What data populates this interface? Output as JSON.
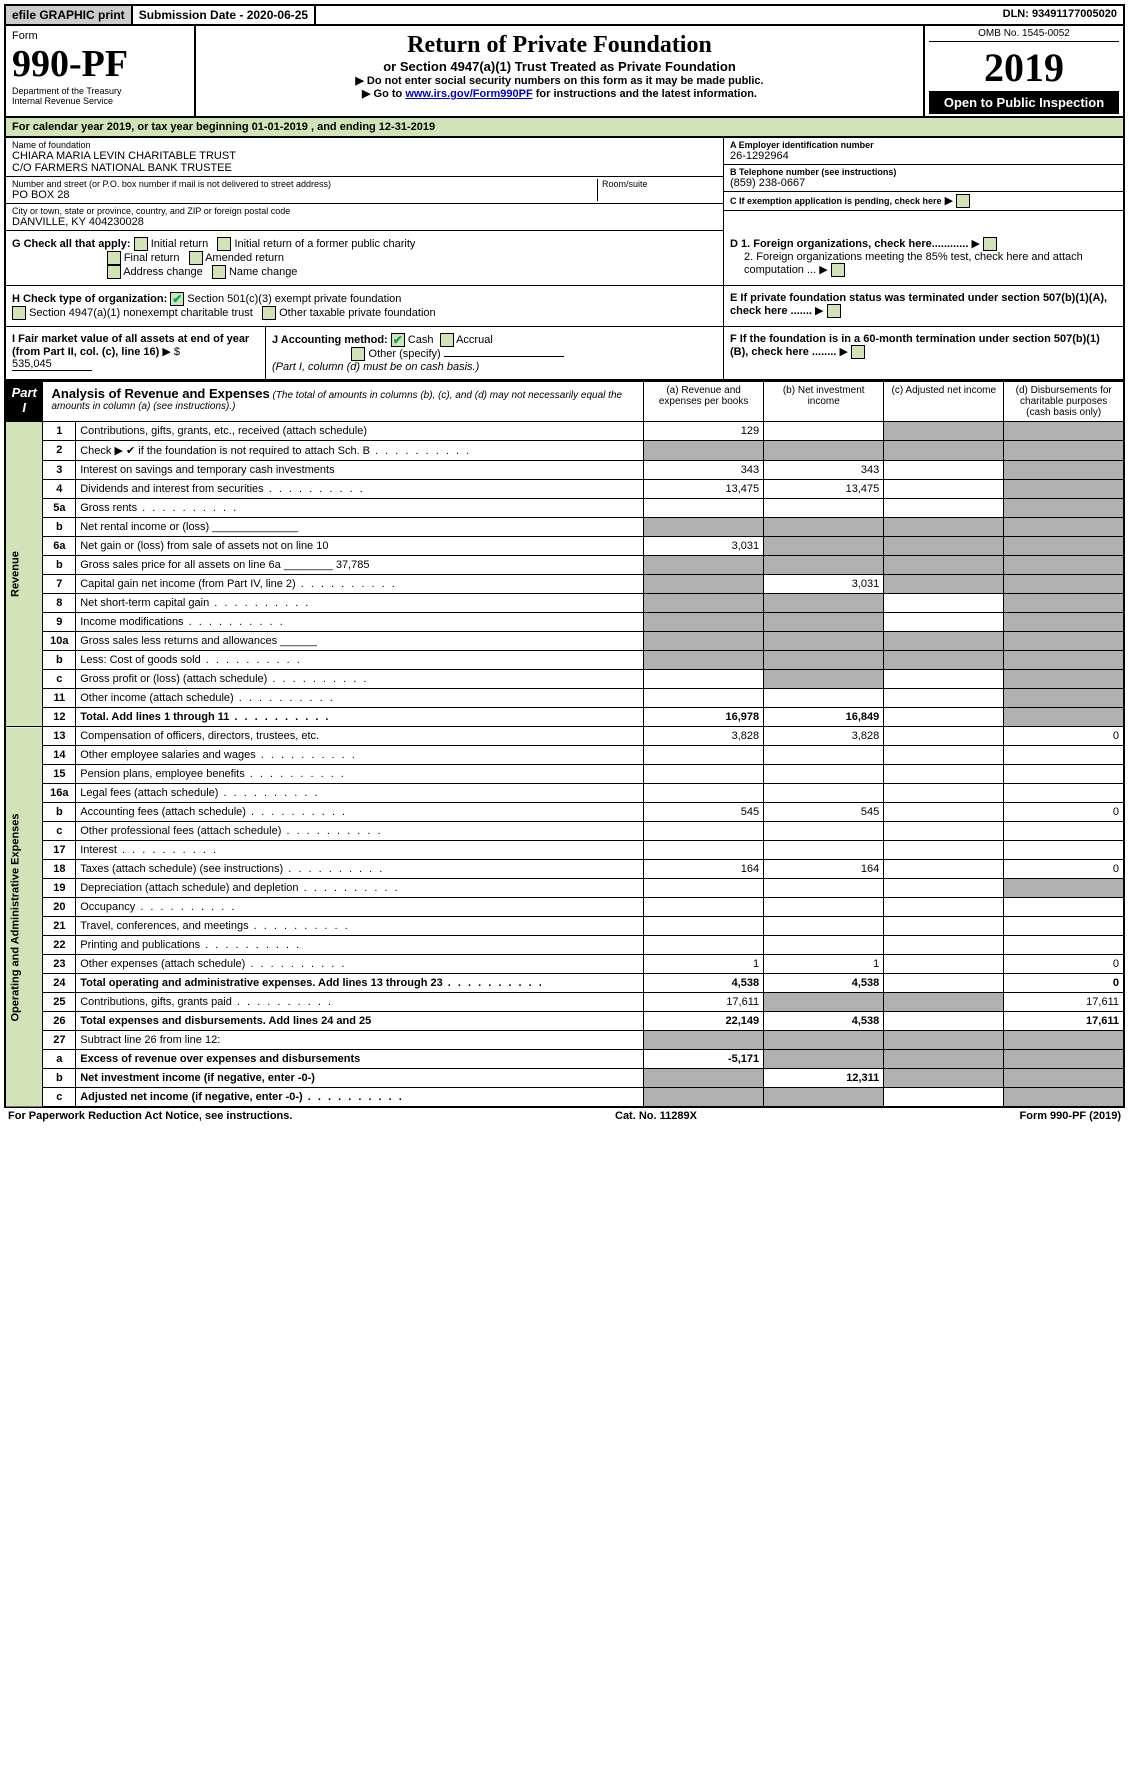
{
  "topbar": {
    "efile": "efile GRAPHIC print",
    "submission_label": "Submission Date - 2020-06-25",
    "dln": "DLN: 93491177005020"
  },
  "header": {
    "form_label": "Form",
    "form_number": "990-PF",
    "dept1": "Department of the Treasury",
    "dept2": "Internal Revenue Service",
    "title": "Return of Private Foundation",
    "subtitle": "or Section 4947(a)(1) Trust Treated as Private Foundation",
    "instr1": "▶ Do not enter social security numbers on this form as it may be made public.",
    "instr2_pre": "▶ Go to ",
    "instr2_link": "www.irs.gov/Form990PF",
    "instr2_post": " for instructions and the latest information.",
    "omb": "OMB No. 1545-0052",
    "year": "2019",
    "open": "Open to Public Inspection"
  },
  "calendar_line": "For calendar year 2019, or tax year beginning 01-01-2019              , and ending 12-31-2019",
  "identity": {
    "name_lbl": "Name of foundation",
    "name1": "CHIARA MARIA LEVIN CHARITABLE TRUST",
    "name2": "C/O FARMERS NATIONAL BANK TRUSTEE",
    "addr_lbl": "Number and street (or P.O. box number if mail is not delivered to street address)",
    "addr": "PO BOX 28",
    "room_lbl": "Room/suite",
    "city_lbl": "City or town, state or province, country, and ZIP or foreign postal code",
    "city": "DANVILLE, KY  404230028",
    "ein_lbl": "A Employer identification number",
    "ein": "26-1292964",
    "tel_lbl": "B Telephone number (see instructions)",
    "tel": "(859) 238-0667",
    "c_lbl": "C If exemption application is pending, check here"
  },
  "g": {
    "label": "G Check all that apply:",
    "opts": [
      "Initial return",
      "Initial return of a former public charity",
      "Final return",
      "Amended return",
      "Address change",
      "Name change"
    ]
  },
  "h": {
    "label": "H Check type of organization:",
    "opt1": "Section 501(c)(3) exempt private foundation",
    "opt2": "Section 4947(a)(1) nonexempt charitable trust",
    "opt3": "Other taxable private foundation"
  },
  "i": {
    "label": "I Fair market value of all assets at end of year (from Part II, col. (c), line 16)",
    "arrow": "▶ $",
    "value": "535,045"
  },
  "j": {
    "label": "J Accounting method:",
    "cash": "Cash",
    "accrual": "Accrual",
    "other": "Other (specify)",
    "note": "(Part I, column (d) must be on cash basis.)"
  },
  "d": {
    "d1": "D 1. Foreign organizations, check here............",
    "d2": "2. Foreign organizations meeting the 85% test, check here and attach computation ...",
    "e": "E  If private foundation status was terminated under section 507(b)(1)(A), check here .......",
    "f": "F  If the foundation is in a 60-month termination under section 507(b)(1)(B), check here ........"
  },
  "part1": {
    "tab": "Part I",
    "title": "Analysis of Revenue and Expenses",
    "note": "(The total of amounts in columns (b), (c), and (d) may not necessarily equal the amounts in column (a) (see instructions).)",
    "col_a": "(a)   Revenue and expenses per books",
    "col_b": "(b)  Net investment income",
    "col_c": "(c)  Adjusted net income",
    "col_d": "(d)  Disbursements for charitable purposes (cash basis only)"
  },
  "revenue_label": "Revenue",
  "expenses_label": "Operating and Administrative Expenses",
  "rows": [
    {
      "n": "1",
      "d": "Contributions, gifts, grants, etc., received (attach schedule)",
      "a": "129",
      "b": "",
      "c": "s",
      "dd": "s"
    },
    {
      "n": "2",
      "d": "Check ▶ ✔ if the foundation is not required to attach Sch. B",
      "a": "s",
      "b": "s",
      "c": "s",
      "dd": "s",
      "dot": 1
    },
    {
      "n": "3",
      "d": "Interest on savings and temporary cash investments",
      "a": "343",
      "b": "343",
      "c": "",
      "dd": "s"
    },
    {
      "n": "4",
      "d": "Dividends and interest from securities",
      "a": "13,475",
      "b": "13,475",
      "c": "",
      "dd": "s",
      "dot": 1
    },
    {
      "n": "5a",
      "d": "Gross rents",
      "a": "",
      "b": "",
      "c": "",
      "dd": "s",
      "dot": 1
    },
    {
      "n": "b",
      "d": "Net rental income or (loss)  ______________",
      "a": "s",
      "b": "s",
      "c": "s",
      "dd": "s"
    },
    {
      "n": "6a",
      "d": "Net gain or (loss) from sale of assets not on line 10",
      "a": "3,031",
      "b": "s",
      "c": "s",
      "dd": "s"
    },
    {
      "n": "b",
      "d": "Gross sales price for all assets on line 6a ________ 37,785",
      "a": "s",
      "b": "s",
      "c": "s",
      "dd": "s"
    },
    {
      "n": "7",
      "d": "Capital gain net income (from Part IV, line 2)",
      "a": "s",
      "b": "3,031",
      "c": "s",
      "dd": "s",
      "dot": 1
    },
    {
      "n": "8",
      "d": "Net short-term capital gain",
      "a": "s",
      "b": "s",
      "c": "",
      "dd": "s",
      "dot": 1
    },
    {
      "n": "9",
      "d": "Income modifications",
      "a": "s",
      "b": "s",
      "c": "",
      "dd": "s",
      "dot": 1
    },
    {
      "n": "10a",
      "d": "Gross sales less returns and allowances  ______",
      "a": "s",
      "b": "s",
      "c": "s",
      "dd": "s"
    },
    {
      "n": "b",
      "d": "Less: Cost of goods sold",
      "a": "s",
      "b": "s",
      "c": "s",
      "dd": "s",
      "dot": 1
    },
    {
      "n": "c",
      "d": "Gross profit or (loss) (attach schedule)",
      "a": "",
      "b": "s",
      "c": "",
      "dd": "s",
      "dot": 1
    },
    {
      "n": "11",
      "d": "Other income (attach schedule)",
      "a": "",
      "b": "",
      "c": "",
      "dd": "s",
      "dot": 1
    },
    {
      "n": "12",
      "d": "Total. Add lines 1 through 11",
      "a": "16,978",
      "b": "16,849",
      "c": "",
      "dd": "s",
      "bold": 1,
      "dot": 1
    }
  ],
  "exp_rows": [
    {
      "n": "13",
      "d": "Compensation of officers, directors, trustees, etc.",
      "a": "3,828",
      "b": "3,828",
      "c": "",
      "dd": "0"
    },
    {
      "n": "14",
      "d": "Other employee salaries and wages",
      "a": "",
      "b": "",
      "c": "",
      "dd": "",
      "dot": 1
    },
    {
      "n": "15",
      "d": "Pension plans, employee benefits",
      "a": "",
      "b": "",
      "c": "",
      "dd": "",
      "dot": 1
    },
    {
      "n": "16a",
      "d": "Legal fees (attach schedule)",
      "a": "",
      "b": "",
      "c": "",
      "dd": "",
      "dot": 1
    },
    {
      "n": "b",
      "d": "Accounting fees (attach schedule)",
      "a": "545",
      "b": "545",
      "c": "",
      "dd": "0",
      "dot": 1
    },
    {
      "n": "c",
      "d": "Other professional fees (attach schedule)",
      "a": "",
      "b": "",
      "c": "",
      "dd": "",
      "dot": 1
    },
    {
      "n": "17",
      "d": "Interest",
      "a": "",
      "b": "",
      "c": "",
      "dd": "",
      "dot": 1
    },
    {
      "n": "18",
      "d": "Taxes (attach schedule) (see instructions)",
      "a": "164",
      "b": "164",
      "c": "",
      "dd": "0",
      "dot": 1
    },
    {
      "n": "19",
      "d": "Depreciation (attach schedule) and depletion",
      "a": "",
      "b": "",
      "c": "",
      "dd": "s",
      "dot": 1
    },
    {
      "n": "20",
      "d": "Occupancy",
      "a": "",
      "b": "",
      "c": "",
      "dd": "",
      "dot": 1
    },
    {
      "n": "21",
      "d": "Travel, conferences, and meetings",
      "a": "",
      "b": "",
      "c": "",
      "dd": "",
      "dot": 1
    },
    {
      "n": "22",
      "d": "Printing and publications",
      "a": "",
      "b": "",
      "c": "",
      "dd": "",
      "dot": 1
    },
    {
      "n": "23",
      "d": "Other expenses (attach schedule)",
      "a": "1",
      "b": "1",
      "c": "",
      "dd": "0",
      "dot": 1
    },
    {
      "n": "24",
      "d": "Total operating and administrative expenses. Add lines 13 through 23",
      "a": "4,538",
      "b": "4,538",
      "c": "",
      "dd": "0",
      "bold": 1,
      "dot": 1
    },
    {
      "n": "25",
      "d": "Contributions, gifts, grants paid",
      "a": "17,611",
      "b": "s",
      "c": "s",
      "dd": "17,611",
      "dot": 1
    },
    {
      "n": "26",
      "d": "Total expenses and disbursements. Add lines 24 and 25",
      "a": "22,149",
      "b": "4,538",
      "c": "",
      "dd": "17,611",
      "bold": 1
    },
    {
      "n": "27",
      "d": "Subtract line 26 from line 12:",
      "a": "s",
      "b": "s",
      "c": "s",
      "dd": "s"
    },
    {
      "n": "a",
      "d": "Excess of revenue over expenses and disbursements",
      "a": "-5,171",
      "b": "s",
      "c": "s",
      "dd": "s",
      "bold": 1
    },
    {
      "n": "b",
      "d": "Net investment income (if negative, enter -0-)",
      "a": "s",
      "b": "12,311",
      "c": "s",
      "dd": "s",
      "bold": 1
    },
    {
      "n": "c",
      "d": "Adjusted net income (if negative, enter -0-)",
      "a": "s",
      "b": "s",
      "c": "",
      "dd": "s",
      "bold": 1,
      "dot": 1
    }
  ],
  "footer": {
    "left": "For Paperwork Reduction Act Notice, see instructions.",
    "mid": "Cat. No. 11289X",
    "right": "Form 990-PF (2019)"
  }
}
